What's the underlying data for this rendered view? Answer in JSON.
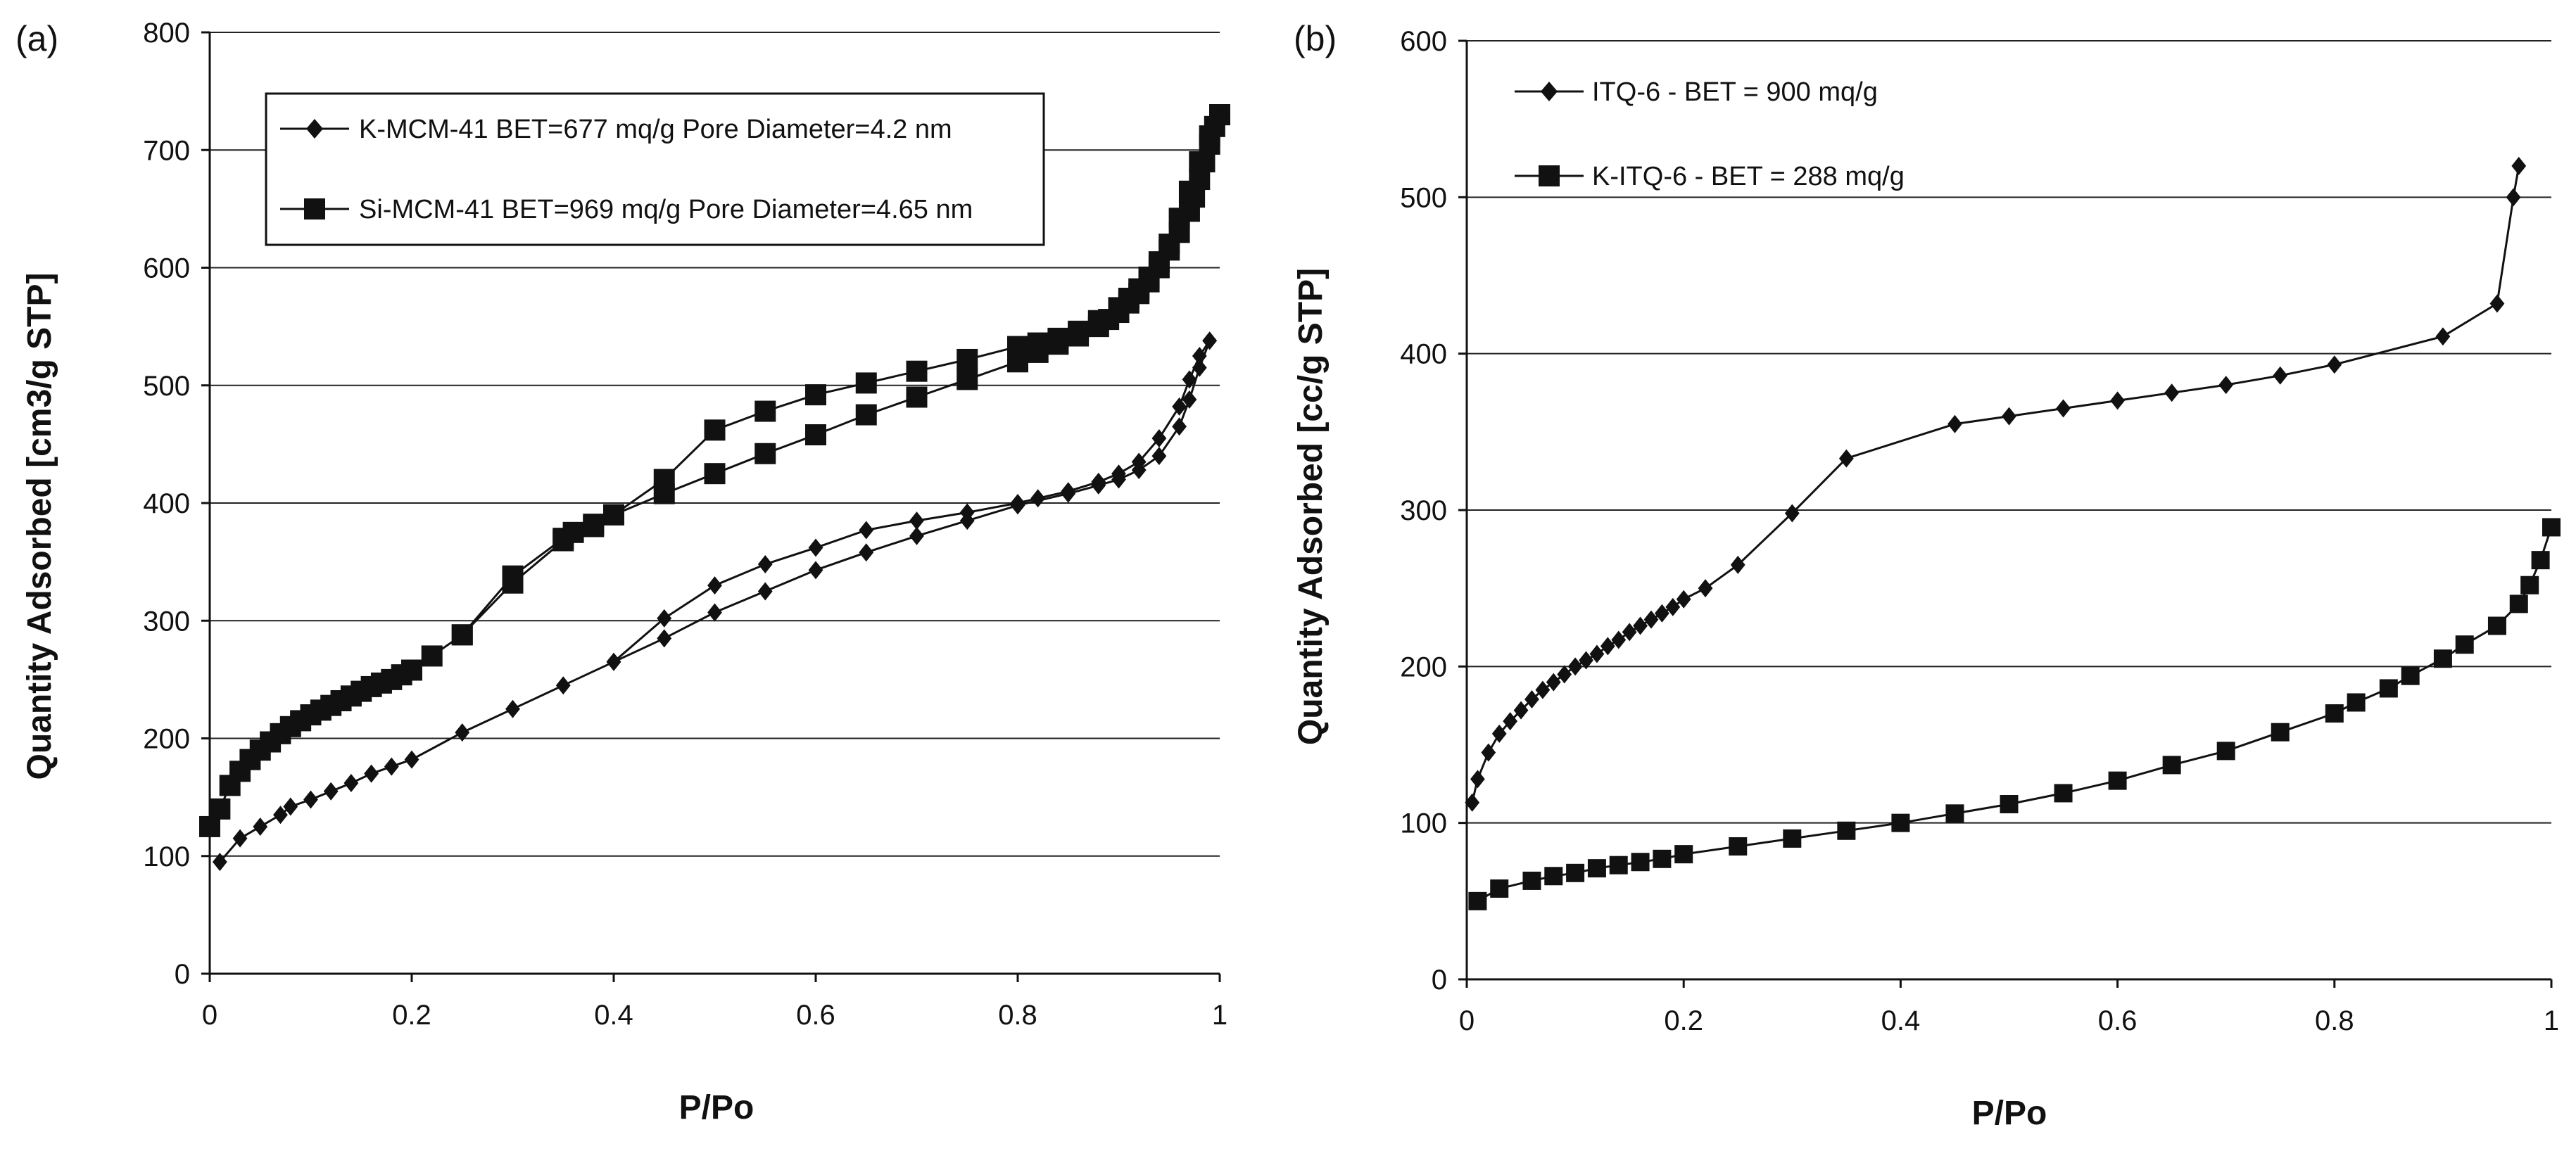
{
  "chart_data": [
    {
      "panel_label": "(a)",
      "type": "line",
      "xlabel": "P/Po",
      "ylabel": "Quantity Adsorbed [cm3/g STP]",
      "xlim": [
        0,
        1
      ],
      "ylim": [
        0,
        800
      ],
      "xticks": [
        "0",
        "0.2",
        "0.4",
        "0.6",
        "0.8",
        "1"
      ],
      "yticks": [
        "0",
        "100",
        "200",
        "300",
        "400",
        "500",
        "600",
        "700",
        "800"
      ],
      "grid": "horizontal",
      "legend_position": "top-left",
      "legend_boxed": true,
      "series": [
        {
          "name": "K-MCM-41 BET=677 mq/g Pore Diameter=4.2 nm",
          "marker": "diamond",
          "adsorption": [
            [
              0.01,
              95
            ],
            [
              0.03,
              115
            ],
            [
              0.05,
              125
            ],
            [
              0.07,
              135
            ],
            [
              0.08,
              142
            ],
            [
              0.1,
              148
            ],
            [
              0.12,
              155
            ],
            [
              0.14,
              162
            ],
            [
              0.16,
              170
            ],
            [
              0.18,
              176
            ],
            [
              0.2,
              182
            ],
            [
              0.25,
              205
            ],
            [
              0.3,
              225
            ],
            [
              0.35,
              245
            ],
            [
              0.4,
              265
            ],
            [
              0.45,
              285
            ],
            [
              0.5,
              307
            ],
            [
              0.55,
              325
            ],
            [
              0.6,
              343
            ],
            [
              0.65,
              358
            ],
            [
              0.7,
              372
            ],
            [
              0.75,
              385
            ],
            [
              0.8,
              398
            ],
            [
              0.85,
              408
            ],
            [
              0.88,
              415
            ],
            [
              0.9,
              420
            ],
            [
              0.92,
              428
            ],
            [
              0.94,
              440
            ],
            [
              0.96,
              465
            ],
            [
              0.97,
              488
            ],
            [
              0.98,
              515
            ],
            [
              0.99,
              538
            ]
          ],
          "desorption": [
            [
              0.99,
              538
            ],
            [
              0.98,
              525
            ],
            [
              0.97,
              505
            ],
            [
              0.96,
              482
            ],
            [
              0.94,
              455
            ],
            [
              0.92,
              435
            ],
            [
              0.9,
              425
            ],
            [
              0.88,
              418
            ],
            [
              0.85,
              410
            ],
            [
              0.82,
              404
            ],
            [
              0.8,
              400
            ],
            [
              0.75,
              392
            ],
            [
              0.7,
              385
            ],
            [
              0.65,
              377
            ],
            [
              0.6,
              362
            ],
            [
              0.55,
              348
            ],
            [
              0.5,
              330
            ],
            [
              0.45,
              302
            ],
            [
              0.4,
              265
            ]
          ]
        },
        {
          "name": "Si-MCM-41 BET=969 mq/g Pore Diameter=4.65 nm",
          "marker": "square",
          "adsorption": [
            [
              0.0,
              125
            ],
            [
              0.01,
              140
            ],
            [
              0.02,
              160
            ],
            [
              0.03,
              172
            ],
            [
              0.04,
              182
            ],
            [
              0.05,
              190
            ],
            [
              0.06,
              197
            ],
            [
              0.07,
              204
            ],
            [
              0.08,
              210
            ],
            [
              0.09,
              215
            ],
            [
              0.1,
              220
            ],
            [
              0.11,
              224
            ],
            [
              0.12,
              228
            ],
            [
              0.13,
              232
            ],
            [
              0.14,
              236
            ],
            [
              0.15,
              240
            ],
            [
              0.16,
              244
            ],
            [
              0.17,
              247
            ],
            [
              0.18,
              250
            ],
            [
              0.19,
              254
            ],
            [
              0.2,
              258
            ],
            [
              0.22,
              270
            ],
            [
              0.25,
              288
            ],
            [
              0.3,
              332
            ],
            [
              0.35,
              368
            ],
            [
              0.38,
              382
            ],
            [
              0.4,
              390
            ],
            [
              0.45,
              408
            ],
            [
              0.5,
              425
            ],
            [
              0.55,
              442
            ],
            [
              0.6,
              458
            ],
            [
              0.65,
              475
            ],
            [
              0.7,
              490
            ],
            [
              0.75,
              505
            ],
            [
              0.8,
              520
            ],
            [
              0.82,
              528
            ],
            [
              0.84,
              535
            ],
            [
              0.86,
              542
            ],
            [
              0.88,
              550
            ],
            [
              0.89,
              556
            ],
            [
              0.9,
              562
            ],
            [
              0.91,
              570
            ],
            [
              0.92,
              578
            ],
            [
              0.93,
              588
            ],
            [
              0.94,
              600
            ],
            [
              0.95,
              615
            ],
            [
              0.96,
              630
            ],
            [
              0.97,
              648
            ],
            [
              0.975,
              660
            ],
            [
              0.98,
              675
            ],
            [
              0.985,
              690
            ],
            [
              0.99,
              705
            ],
            [
              0.995,
              720
            ],
            [
              1.0,
              730
            ]
          ],
          "desorption": [
            [
              1.0,
              730
            ],
            [
              0.99,
              712
            ],
            [
              0.98,
              690
            ],
            [
              0.97,
              665
            ],
            [
              0.96,
              642
            ],
            [
              0.95,
              620
            ],
            [
              0.94,
              605
            ],
            [
              0.93,
              592
            ],
            [
              0.92,
              582
            ],
            [
              0.91,
              574
            ],
            [
              0.9,
              566
            ],
            [
              0.88,
              555
            ],
            [
              0.86,
              546
            ],
            [
              0.84,
              540
            ],
            [
              0.82,
              536
            ],
            [
              0.8,
              533
            ],
            [
              0.75,
              522
            ],
            [
              0.7,
              512
            ],
            [
              0.65,
              502
            ],
            [
              0.6,
              492
            ],
            [
              0.55,
              478
            ],
            [
              0.5,
              462
            ],
            [
              0.45,
              420
            ],
            [
              0.4,
              390
            ],
            [
              0.38,
              380
            ],
            [
              0.36,
              375
            ],
            [
              0.35,
              370
            ],
            [
              0.3,
              338
            ],
            [
              0.25,
              288
            ]
          ]
        }
      ]
    },
    {
      "panel_label": "(b)",
      "type": "line",
      "xlabel": "P/Po",
      "ylabel": "Quantity Adsorbed [cc/g STP]",
      "xlim": [
        0,
        1
      ],
      "ylim": [
        0,
        600
      ],
      "xticks": [
        "0",
        "0.2",
        "0.4",
        "0.6",
        "0.8",
        "1"
      ],
      "yticks": [
        "0",
        "100",
        "200",
        "300",
        "400",
        "500",
        "600"
      ],
      "grid": "horizontal",
      "legend_position": "top-left",
      "legend_boxed": false,
      "series": [
        {
          "name": "ITQ-6 - BET = 900 mq/g",
          "marker": "diamond",
          "points": [
            [
              0.005,
              113
            ],
            [
              0.01,
              128
            ],
            [
              0.02,
              145
            ],
            [
              0.03,
              157
            ],
            [
              0.04,
              165
            ],
            [
              0.05,
              172
            ],
            [
              0.06,
              179
            ],
            [
              0.07,
              185
            ],
            [
              0.08,
              190
            ],
            [
              0.09,
              195
            ],
            [
              0.1,
              200
            ],
            [
              0.11,
              204
            ],
            [
              0.12,
              208
            ],
            [
              0.13,
              213
            ],
            [
              0.14,
              217
            ],
            [
              0.15,
              222
            ],
            [
              0.16,
              226
            ],
            [
              0.17,
              230
            ],
            [
              0.18,
              234
            ],
            [
              0.19,
              238
            ],
            [
              0.2,
              243
            ],
            [
              0.22,
              250
            ],
            [
              0.25,
              265
            ],
            [
              0.3,
              298
            ],
            [
              0.35,
              333
            ],
            [
              0.45,
              355
            ],
            [
              0.5,
              360
            ],
            [
              0.55,
              365
            ],
            [
              0.6,
              370
            ],
            [
              0.65,
              375
            ],
            [
              0.7,
              380
            ],
            [
              0.75,
              386
            ],
            [
              0.8,
              393
            ],
            [
              0.9,
              411
            ],
            [
              0.95,
              432
            ],
            [
              0.965,
              500
            ],
            [
              0.97,
              520
            ]
          ]
        },
        {
          "name": "K-ITQ-6 - BET = 288 mq/g",
          "marker": "square",
          "points": [
            [
              0.01,
              50
            ],
            [
              0.03,
              58
            ],
            [
              0.06,
              63
            ],
            [
              0.08,
              66
            ],
            [
              0.1,
              68
            ],
            [
              0.12,
              71
            ],
            [
              0.14,
              73
            ],
            [
              0.16,
              75
            ],
            [
              0.18,
              77
            ],
            [
              0.2,
              80
            ],
            [
              0.25,
              85
            ],
            [
              0.3,
              90
            ],
            [
              0.35,
              95
            ],
            [
              0.4,
              100
            ],
            [
              0.45,
              106
            ],
            [
              0.5,
              112
            ],
            [
              0.55,
              119
            ],
            [
              0.6,
              127
            ],
            [
              0.65,
              137
            ],
            [
              0.7,
              146
            ],
            [
              0.75,
              158
            ],
            [
              0.8,
              170
            ],
            [
              0.82,
              177
            ],
            [
              0.85,
              186
            ],
            [
              0.87,
              194
            ],
            [
              0.9,
              205
            ],
            [
              0.92,
              214
            ],
            [
              0.95,
              226
            ],
            [
              0.97,
              240
            ],
            [
              0.98,
              252
            ],
            [
              0.99,
              268
            ],
            [
              1.0,
              289
            ]
          ]
        }
      ]
    }
  ]
}
